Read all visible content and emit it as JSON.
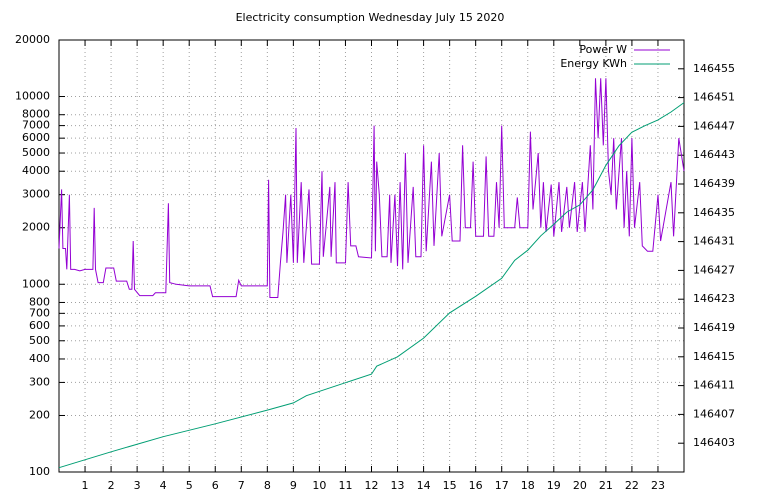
{
  "chart_data": {
    "type": "line",
    "title": "Electricity consumption Wednesday July 15 2020",
    "xlim": [
      0,
      24
    ],
    "xticks": [
      1,
      2,
      3,
      4,
      5,
      6,
      7,
      8,
      9,
      10,
      11,
      12,
      13,
      14,
      15,
      16,
      17,
      18,
      19,
      20,
      21,
      22,
      23
    ],
    "ylim": [
      100,
      20000
    ],
    "log_y": true,
    "yticks": [
      100,
      200,
      300,
      400,
      500,
      600,
      700,
      800,
      1000,
      2000,
      3000,
      4000,
      5000,
      6000,
      7000,
      8000,
      10000,
      20000
    ],
    "y2lim": [
      146399,
      146459
    ],
    "y2ticks": [
      146403,
      146407,
      146411,
      146415,
      146419,
      146423,
      146427,
      146431,
      146435,
      146439,
      146443,
      146447,
      146451,
      146455
    ],
    "grid": true,
    "legend": "top-right",
    "series": [
      {
        "name": "Power W",
        "color": "#9400d3",
        "x": [
          0,
          0.1,
          0.15,
          0.25,
          0.3,
          0.4,
          0.45,
          0.6,
          0.8,
          1,
          1.3,
          1.35,
          1.4,
          1.5,
          1.7,
          1.8,
          2.1,
          2.2,
          2.6,
          2.7,
          2.8,
          2.85,
          2.9,
          3.1,
          3.6,
          3.7,
          4.1,
          4.2,
          4.25,
          4.5,
          5.0,
          5.8,
          5.9,
          6.8,
          6.9,
          7.0,
          8.0,
          8.05,
          8.1,
          8.4,
          8.5,
          8.6,
          8.7,
          8.75,
          8.9,
          9.0,
          9.1,
          9.15,
          9.3,
          9.4,
          9.6,
          9.7,
          10.0,
          10.1,
          10.15,
          10.4,
          10.45,
          10.6,
          10.65,
          11.0,
          11.1,
          11.2,
          11.4,
          11.5,
          12.0,
          12.05,
          12.1,
          12.15,
          12.2,
          12.3,
          12.4,
          12.6,
          12.7,
          12.75,
          12.9,
          13.0,
          13.1,
          13.2,
          13.3,
          13.4,
          13.6,
          13.7,
          13.9,
          14.0,
          14.1,
          14.3,
          14.4,
          14.6,
          14.7,
          15.0,
          15.1,
          15.4,
          15.5,
          15.6,
          15.8,
          15.9,
          16.0,
          16.3,
          16.4,
          16.5,
          16.7,
          16.8,
          16.9,
          17.0,
          17.1,
          17.5,
          17.6,
          17.7,
          18.0,
          18.1,
          18.2,
          18.4,
          18.5,
          18.6,
          18.7,
          18.9,
          19.0,
          19.2,
          19.3,
          19.5,
          19.6,
          19.8,
          19.9,
          20.1,
          20.2,
          20.4,
          20.5,
          20.6,
          20.7,
          20.8,
          20.9,
          21.0,
          21.1,
          21.2,
          21.3,
          21.4,
          21.6,
          21.7,
          21.8,
          21.9,
          22.0,
          22.1,
          22.3,
          22.4,
          22.6,
          22.8,
          23.0,
          23.1,
          23.5,
          23.6,
          23.8,
          24
        ],
        "values": [
          1550,
          3200,
          1550,
          1550,
          1200,
          3000,
          1200,
          1200,
          1180,
          1200,
          1200,
          2550,
          1200,
          1020,
          1020,
          1220,
          1220,
          1040,
          1040,
          940,
          940,
          1700,
          940,
          870,
          870,
          900,
          900,
          2700,
          1020,
          1000,
          980,
          980,
          860,
          860,
          1050,
          980,
          980,
          3600,
          850,
          850,
          1300,
          1900,
          3000,
          1300,
          3000,
          1300,
          6800,
          1300,
          3500,
          1300,
          3200,
          1280,
          1280,
          4000,
          1400,
          3300,
          1400,
          3500,
          1300,
          1300,
          3500,
          1600,
          1600,
          1400,
          1380,
          3000,
          7000,
          1500,
          4500,
          3000,
          1400,
          1400,
          3000,
          1300,
          3000,
          1250,
          3500,
          1200,
          5000,
          1300,
          3300,
          1400,
          1400,
          5500,
          1500,
          4500,
          1600,
          5000,
          1800,
          3000,
          1700,
          1700,
          5500,
          2000,
          2000,
          4500,
          1800,
          1800,
          4800,
          1800,
          1800,
          3500,
          2000,
          7000,
          2000,
          2000,
          2900,
          2000,
          2000,
          6500,
          2500,
          5000,
          2000,
          3500,
          1900,
          3400,
          1800,
          3500,
          1900,
          3300,
          2000,
          3500,
          1900,
          3500,
          1900,
          5500,
          2500,
          12500,
          6000,
          12500,
          5500,
          12500,
          4000,
          3000,
          6000,
          2500,
          6000,
          2000,
          4000,
          1800,
          6000,
          2000,
          3500,
          1600,
          1500,
          1500,
          3000,
          1700,
          3500,
          1800,
          6000,
          4000
        ]
      },
      {
        "name": "Energy KWh",
        "color": "#009e73",
        "axis": "y2",
        "x": [
          0,
          2,
          4,
          6,
          8,
          9,
          9.5,
          11,
          12,
          12.2,
          13,
          14,
          15,
          16,
          17,
          17.5,
          18,
          18.5,
          19,
          19.5,
          20,
          20.5,
          21,
          21.5,
          22,
          22.5,
          23,
          23.5,
          24
        ],
        "values": [
          146399.6,
          146401.8,
          146403.9,
          146405.7,
          146407.6,
          146408.6,
          146409.6,
          146411.4,
          146412.6,
          146413.7,
          146415.0,
          146417.6,
          146421.1,
          146423.4,
          146425.9,
          146428.4,
          146429.8,
          146431.8,
          146433.4,
          146435.1,
          146436.1,
          146438.2,
          146441.6,
          146444.3,
          146446.2,
          146447.1,
          146447.9,
          146449.0,
          146450.3
        ]
      }
    ]
  }
}
